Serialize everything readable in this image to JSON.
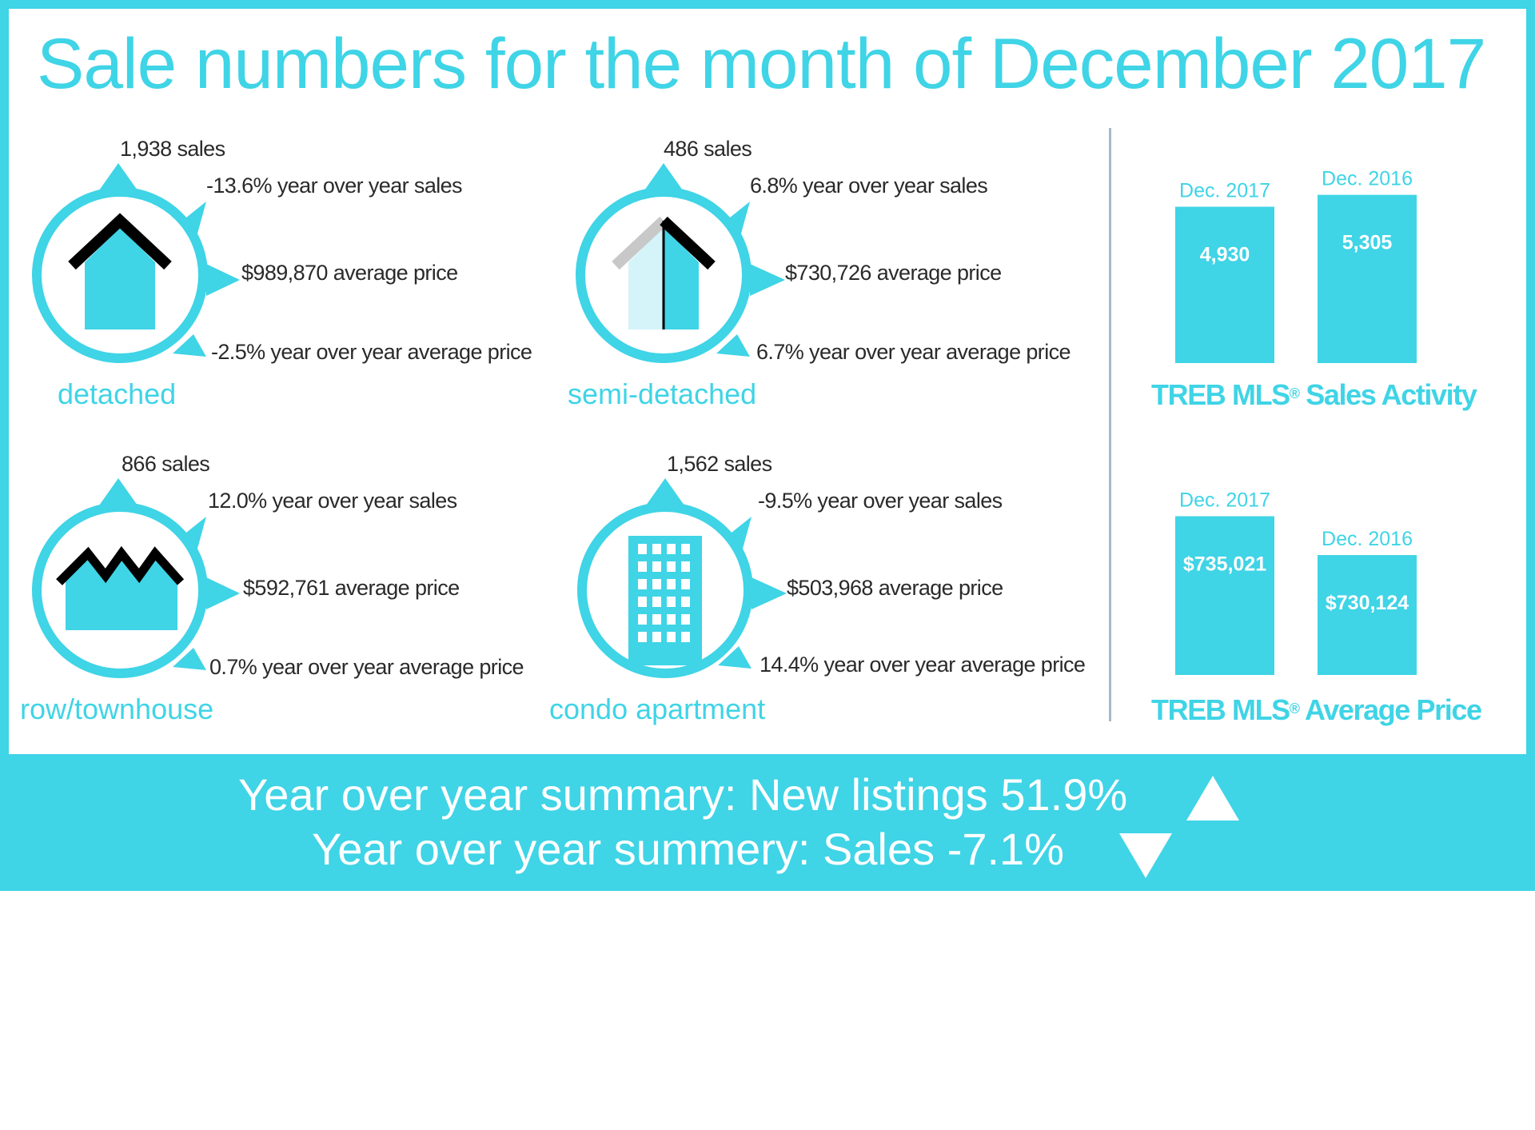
{
  "title": "Sale numbers for the month of December 2017",
  "colors": {
    "accent": "#3fd4e6",
    "light_accent": "#d4f4f9",
    "roof": "#000000",
    "roof_light": "#c8c8c8",
    "text": "#2a2a2a",
    "divider": "#a7b8c6"
  },
  "categories": [
    {
      "name": "detached",
      "icon": "detached-house-icon",
      "sales": "1,938 sales",
      "yoy_sales": "-13.6% year over year sales",
      "avg_price": "$989,870 average price",
      "yoy_price": "-2.5% year over year average price"
    },
    {
      "name": "semi-detached",
      "icon": "semi-detached-house-icon",
      "sales": "486 sales",
      "yoy_sales": "6.8% year over year sales",
      "avg_price": "$730,726 average price",
      "yoy_price": "6.7% year over year average price"
    },
    {
      "name": "row/townhouse",
      "icon": "townhouse-icon",
      "sales": "866 sales",
      "yoy_sales": "12.0% year over year sales",
      "avg_price": "$592,761 average price",
      "yoy_price": "0.7% year over year average price"
    },
    {
      "name": "condo apartment",
      "icon": "condo-building-icon",
      "sales": "1,562 sales",
      "yoy_sales": "-9.5% year over year sales",
      "avg_price": "$503,968 average price",
      "yoy_price": "14.4% year over year average price"
    }
  ],
  "chart_data": [
    {
      "type": "bar",
      "title": "TREB MLS",
      "title_suffix": "Sales Activity",
      "registered_mark": "®",
      "categories": [
        "Dec. 2017",
        "Dec. 2016"
      ],
      "values": [
        4930,
        5305
      ],
      "value_labels": [
        "4,930",
        "5,305"
      ],
      "ylim": [
        0,
        5800
      ]
    },
    {
      "type": "bar",
      "title": "TREB MLS",
      "title_suffix": "Average Price",
      "registered_mark": "®",
      "categories": [
        "Dec. 2017",
        "Dec. 2016"
      ],
      "values": [
        735021,
        730124
      ],
      "value_labels": [
        "$735,021",
        "$730,124"
      ],
      "ylim": [
        715000,
        738200
      ]
    }
  ],
  "summary": {
    "line1": "Year over year summary: New listings 51.9%",
    "line1_arrow": "up-arrow-icon",
    "line2": "Year over year summery: Sales -7.1%",
    "line2_arrow": "down-arrow-icon"
  }
}
